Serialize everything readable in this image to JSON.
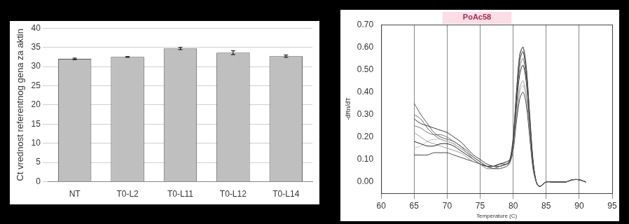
{
  "chart_data": [
    {
      "type": "bar",
      "y_label": "Ct vrednost referentnog gena za aktin",
      "categories": [
        "NT",
        "T0-L2",
        "T0-L11",
        "T0-L12",
        "T0-L14"
      ],
      "values": [
        32.0,
        32.5,
        34.7,
        33.6,
        32.7
      ],
      "errors": [
        0.2,
        0.1,
        0.3,
        0.5,
        0.3
      ],
      "color": "#bfbfbf",
      "ylim": [
        0,
        40
      ],
      "yticks": [
        0,
        5,
        10,
        15,
        20,
        25,
        30,
        35,
        40
      ],
      "grid": true
    },
    {
      "type": "line",
      "title": "PoAc58",
      "x_label": "Temperature (C)",
      "y_label": "-dRn/dT",
      "x": [
        65,
        66,
        67,
        68,
        69,
        70,
        71,
        72,
        73,
        74,
        75,
        76,
        77,
        78,
        79,
        79.5,
        80,
        80.5,
        81,
        81.5,
        82,
        82.5,
        83,
        83.5,
        84,
        85,
        86,
        87,
        88,
        89,
        90,
        91
      ],
      "series": [
        {
          "color": "#555555",
          "values": [
            0.35,
            0.3,
            0.26,
            0.22,
            0.2,
            0.19,
            0.18,
            0.16,
            0.14,
            0.11,
            0.09,
            0.07,
            0.06,
            0.07,
            0.08,
            0.1,
            0.2,
            0.4,
            0.56,
            0.6,
            0.5,
            0.3,
            0.1,
            0,
            -0.02,
            0,
            0,
            0,
            0,
            0.01,
            0.01,
            0
          ]
        },
        {
          "color": "#333333",
          "values": [
            0.28,
            0.26,
            0.25,
            0.24,
            0.23,
            0.22,
            0.2,
            0.18,
            0.15,
            0.12,
            0.1,
            0.08,
            0.07,
            0.07,
            0.08,
            0.09,
            0.18,
            0.38,
            0.54,
            0.58,
            0.48,
            0.28,
            0.09,
            0,
            -0.02,
            0,
            0,
            0,
            0,
            0.01,
            0.01,
            0
          ]
        },
        {
          "color": "#777777",
          "values": [
            0.25,
            0.24,
            0.22,
            0.21,
            0.21,
            0.2,
            0.18,
            0.16,
            0.13,
            0.1,
            0.08,
            0.06,
            0.06,
            0.06,
            0.07,
            0.09,
            0.17,
            0.36,
            0.51,
            0.55,
            0.46,
            0.27,
            0.09,
            0,
            -0.02,
            0,
            0,
            0,
            0,
            0.01,
            0.01,
            0
          ]
        },
        {
          "color": "#222222",
          "values": [
            0.18,
            0.17,
            0.16,
            0.16,
            0.17,
            0.17,
            0.16,
            0.14,
            0.12,
            0.1,
            0.08,
            0.07,
            0.07,
            0.08,
            0.09,
            0.1,
            0.17,
            0.34,
            0.48,
            0.52,
            0.44,
            0.26,
            0.08,
            0,
            -0.02,
            0,
            0,
            0,
            0,
            0.01,
            0.01,
            0
          ]
        },
        {
          "color": "#999999",
          "values": [
            0.22,
            0.2,
            0.18,
            0.17,
            0.16,
            0.15,
            0.14,
            0.13,
            0.11,
            0.09,
            0.08,
            0.07,
            0.07,
            0.07,
            0.08,
            0.09,
            0.15,
            0.3,
            0.42,
            0.45,
            0.38,
            0.22,
            0.07,
            0,
            -0.02,
            0,
            0,
            0,
            0,
            0.01,
            0.01,
            0
          ]
        },
        {
          "color": "#444444",
          "values": [
            0.12,
            0.12,
            0.12,
            0.13,
            0.13,
            0.13,
            0.12,
            0.11,
            0.1,
            0.09,
            0.08,
            0.07,
            0.07,
            0.08,
            0.08,
            0.09,
            0.14,
            0.27,
            0.37,
            0.4,
            0.34,
            0.2,
            0.06,
            0,
            -0.02,
            0,
            0,
            0,
            0,
            0.01,
            0.01,
            0
          ]
        },
        {
          "color": "#bbbbbb",
          "values": [
            0.15,
            0.16,
            0.18,
            0.19,
            0.19,
            0.18,
            0.17,
            0.15,
            0.13,
            0.11,
            0.09,
            0.07,
            0.06,
            0.06,
            0.07,
            0.08,
            0.14,
            0.28,
            0.4,
            0.43,
            0.37,
            0.21,
            0.07,
            0,
            -0.02,
            0,
            0,
            0,
            0,
            0.01,
            0.01,
            0
          ]
        },
        {
          "color": "#666666",
          "values": [
            0.3,
            0.28,
            0.24,
            0.21,
            0.19,
            0.18,
            0.17,
            0.15,
            0.13,
            0.11,
            0.09,
            0.07,
            0.06,
            0.06,
            0.07,
            0.09,
            0.19,
            0.4,
            0.57,
            0.6,
            0.51,
            0.3,
            0.1,
            0,
            -0.02,
            0,
            0,
            0,
            0,
            0.01,
            0.01,
            0
          ]
        }
      ],
      "xlim": [
        60,
        95
      ],
      "xticks": [
        60,
        65,
        70,
        75,
        80,
        85,
        90,
        95
      ],
      "ylim": [
        -0.05,
        0.7
      ],
      "yticks": [
        {
          "value": 0,
          "label": "0.00"
        },
        {
          "value": 0.1,
          "label": "0.10"
        },
        {
          "value": 0.2,
          "label": "0.20"
        },
        {
          "value": 0.3,
          "label": "0.30"
        },
        {
          "value": 0.4,
          "label": "0.40"
        },
        {
          "value": 0.5,
          "label": "0.50"
        },
        {
          "value": 0.6,
          "label": "0.60"
        },
        {
          "value": 0.7,
          "label": "0.70"
        }
      ],
      "grid": "x"
    }
  ]
}
